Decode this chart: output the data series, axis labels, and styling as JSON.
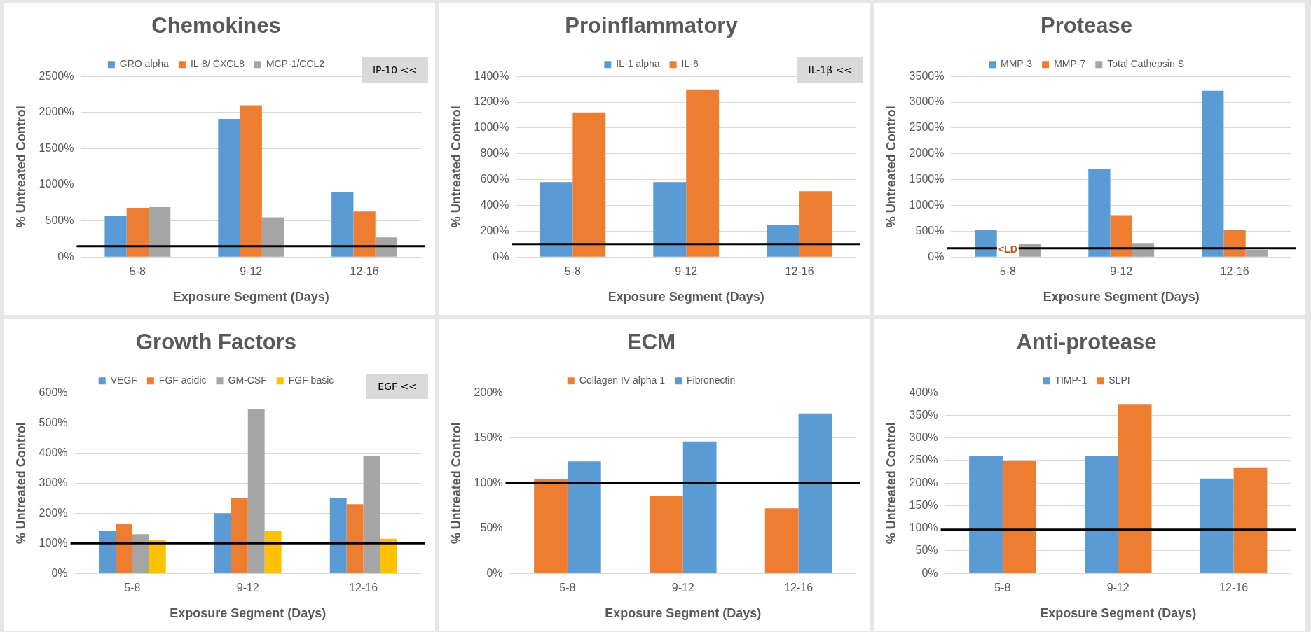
{
  "chart_data": [
    {
      "type": "bar",
      "title": "Chemokines",
      "xlabel": "Exposure Segment (Days)",
      "ylabel": "% Untreated Control",
      "categories": [
        "5-8",
        "9-12",
        "12-16"
      ],
      "series": [
        {
          "name": "GRO alpha",
          "color": "#5b9bd5",
          "values": [
            570,
            1910,
            900
          ]
        },
        {
          "name": "IL-8/ CXCL8",
          "color": "#ed7d31",
          "values": [
            680,
            2100,
            630
          ]
        },
        {
          "name": "MCP-1/CCL2",
          "color": "#a5a5a5",
          "values": [
            690,
            550,
            270
          ]
        }
      ],
      "ylim": [
        0,
        2500
      ],
      "yticks": [
        {
          "value": 0,
          "label": "0%"
        },
        {
          "value": 500,
          "label": "500%"
        },
        {
          "value": 1000,
          "label": "1000%"
        },
        {
          "value": 1500,
          "label": "1500%"
        },
        {
          "value": 2000,
          "label": "2000%"
        },
        {
          "value": 2500,
          "label": "2500%"
        }
      ],
      "grid": "y",
      "legend": "top",
      "ref_lines": [
        {
          "axis": "y",
          "value": 150,
          "color": "#000000"
        }
      ],
      "annotations": [
        "IP-10 <<"
      ]
    },
    {
      "type": "bar",
      "title": "Proinflammatory",
      "xlabel": "Exposure Segment (Days)",
      "ylabel": "% Untreated Control",
      "categories": [
        "5-8",
        "9-12",
        "12-16"
      ],
      "series": [
        {
          "name": "IL-1 alpha",
          "color": "#5b9bd5",
          "values": [
            580,
            580,
            250
          ]
        },
        {
          "name": "IL-6",
          "color": "#ed7d31",
          "values": [
            1120,
            1300,
            510
          ]
        }
      ],
      "ylim": [
        0,
        1400
      ],
      "yticks": [
        {
          "value": 0,
          "label": "0%"
        },
        {
          "value": 200,
          "label": "200%"
        },
        {
          "value": 400,
          "label": "400%"
        },
        {
          "value": 600,
          "label": "600%"
        },
        {
          "value": 800,
          "label": "800%"
        },
        {
          "value": 1000,
          "label": "1000%"
        },
        {
          "value": 1200,
          "label": "1200%"
        },
        {
          "value": 1400,
          "label": "1400%"
        }
      ],
      "grid": "y",
      "legend": "top",
      "ref_lines": [
        {
          "axis": "y",
          "value": 100,
          "color": "#000000"
        }
      ],
      "annotations": [
        "IL-1β <<"
      ]
    },
    {
      "type": "bar",
      "title": "Protease",
      "xlabel": "Exposure Segment (Days)",
      "ylabel": "% Untreated Control",
      "categories": [
        "5-8",
        "9-12",
        "12-16"
      ],
      "series": [
        {
          "name": "MMP-3",
          "color": "#5b9bd5",
          "values": [
            530,
            1700,
            3220
          ]
        },
        {
          "name": "MMP-7",
          "color": "#ed7d31",
          "values": [
            null,
            810,
            530
          ]
        },
        {
          "name": "Total Cathepsin S",
          "color": "#a5a5a5",
          "values": [
            250,
            270,
            140
          ]
        }
      ],
      "ylim": [
        0,
        3500
      ],
      "yticks": [
        {
          "value": 0,
          "label": "0%"
        },
        {
          "value": 500,
          "label": "500%"
        },
        {
          "value": 1000,
          "label": "1000%"
        },
        {
          "value": 1500,
          "label": "1500%"
        },
        {
          "value": 2000,
          "label": "2000%"
        },
        {
          "value": 2500,
          "label": "2500%"
        },
        {
          "value": 3000,
          "label": "3000%"
        },
        {
          "value": 3500,
          "label": "3500%"
        }
      ],
      "grid": "y",
      "legend": "top",
      "ref_lines": [
        {
          "axis": "y",
          "value": 170,
          "color": "#000000"
        }
      ],
      "annotations": [
        {
          "text": "<LD",
          "x": "5-8",
          "y": 140
        }
      ]
    },
    {
      "type": "bar",
      "title": "Growth Factors",
      "xlabel": "Exposure Segment (Days)",
      "ylabel": "% Untreated Control",
      "categories": [
        "5-8",
        "9-12",
        "12-16"
      ],
      "series": [
        {
          "name": "VEGF",
          "color": "#5b9bd5",
          "values": [
            140,
            200,
            250
          ]
        },
        {
          "name": "FGF acidic",
          "color": "#ed7d31",
          "values": [
            165,
            250,
            230
          ]
        },
        {
          "name": "GM-CSF",
          "color": "#a5a5a5",
          "values": [
            130,
            545,
            390
          ]
        },
        {
          "name": "FGF basic",
          "color": "#ffc000",
          "values": [
            110,
            140,
            115
          ]
        }
      ],
      "ylim": [
        0,
        600
      ],
      "yticks": [
        {
          "value": 0,
          "label": "0%"
        },
        {
          "value": 100,
          "label": "100%"
        },
        {
          "value": 200,
          "label": "200%"
        },
        {
          "value": 300,
          "label": "300%"
        },
        {
          "value": 400,
          "label": "400%"
        },
        {
          "value": 500,
          "label": "500%"
        },
        {
          "value": 600,
          "label": "600%"
        }
      ],
      "grid": "y",
      "legend": "top",
      "ref_lines": [
        {
          "axis": "y",
          "value": 100,
          "color": "#000000"
        }
      ],
      "annotations": [
        "EGF <<"
      ]
    },
    {
      "type": "bar",
      "title": "ECM",
      "xlabel": "Exposure Segment (Days)",
      "ylabel": "% Untreated Control",
      "categories": [
        "5-8",
        "9-12",
        "12-16"
      ],
      "series": [
        {
          "name": "Collagen IV alpha 1",
          "color": "#ed7d31",
          "values": [
            104,
            86,
            72
          ]
        },
        {
          "name": "Fibronectin",
          "color": "#5b9bd5",
          "values": [
            124,
            146,
            177
          ]
        }
      ],
      "ylim": [
        0,
        200
      ],
      "yticks": [
        {
          "value": 0,
          "label": "0%"
        },
        {
          "value": 50,
          "label": "50%"
        },
        {
          "value": 100,
          "label": "100%"
        },
        {
          "value": 150,
          "label": "150%"
        },
        {
          "value": 200,
          "label": "200%"
        }
      ],
      "grid": "y",
      "legend": "top",
      "ref_lines": [
        {
          "axis": "y",
          "value": 100,
          "color": "#000000"
        }
      ]
    },
    {
      "type": "bar",
      "title": "Anti-protease",
      "xlabel": "Exposure Segment (Days)",
      "ylabel": "% Untreated Control",
      "categories": [
        "5-8",
        "9-12",
        "12-16"
      ],
      "series": [
        {
          "name": "TIMP-1",
          "color": "#5b9bd5",
          "values": [
            260,
            260,
            210
          ]
        },
        {
          "name": "SLPI",
          "color": "#ed7d31",
          "values": [
            250,
            375,
            235
          ]
        }
      ],
      "ylim": [
        0,
        400
      ],
      "yticks": [
        {
          "value": 0,
          "label": "0%"
        },
        {
          "value": 50,
          "label": "50%"
        },
        {
          "value": 100,
          "label": "100%"
        },
        {
          "value": 150,
          "label": "150%"
        },
        {
          "value": 200,
          "label": "200%"
        },
        {
          "value": 250,
          "label": "250%"
        },
        {
          "value": 300,
          "label": "300%"
        },
        {
          "value": 350,
          "label": "350%"
        },
        {
          "value": 400,
          "label": "400%"
        }
      ],
      "grid": "y",
      "legend": "top",
      "ref_lines": [
        {
          "axis": "y",
          "value": 97,
          "color": "#000000"
        }
      ]
    }
  ]
}
